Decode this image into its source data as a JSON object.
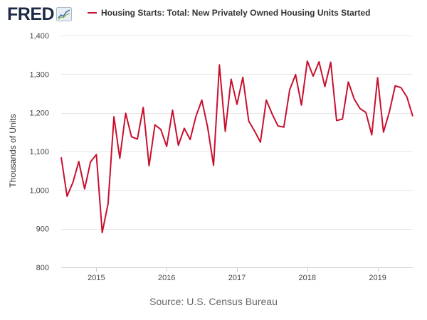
{
  "logo": {
    "text": "FRED"
  },
  "legend": {
    "label": "Housing Starts: Total: New Privately Owned Housing Units Started",
    "color": "#c8102e"
  },
  "source": "Source: U.S. Census Bureau",
  "chart_data": {
    "type": "line",
    "title": "Housing Starts: Total: New Privately Owned Housing Units Started",
    "ylabel": "Thousands of Units",
    "xlabel": "",
    "ylim": [
      800,
      1400
    ],
    "yticks": [
      "800",
      "900",
      "1,000",
      "1,100",
      "1,200",
      "1,300",
      "1,400"
    ],
    "xticks": [
      "2015",
      "2016",
      "2017",
      "2018",
      "2019"
    ],
    "grid": "horizontal",
    "line_color": "#c8102e",
    "series": [
      {
        "name": "Housing Starts: Total: New Privately Owned Housing Units Started",
        "x": [
          "2014-07",
          "2014-08",
          "2014-09",
          "2014-10",
          "2014-11",
          "2014-12",
          "2015-01",
          "2015-02",
          "2015-03",
          "2015-04",
          "2015-05",
          "2015-06",
          "2015-07",
          "2015-08",
          "2015-09",
          "2015-10",
          "2015-11",
          "2015-12",
          "2016-01",
          "2016-02",
          "2016-03",
          "2016-04",
          "2016-05",
          "2016-06",
          "2016-07",
          "2016-08",
          "2016-09",
          "2016-10",
          "2016-11",
          "2016-12",
          "2017-01",
          "2017-02",
          "2017-03",
          "2017-04",
          "2017-05",
          "2017-06",
          "2017-07",
          "2017-08",
          "2017-09",
          "2017-10",
          "2017-11",
          "2017-12",
          "2018-01",
          "2018-02",
          "2018-03",
          "2018-04",
          "2018-05",
          "2018-06",
          "2018-07",
          "2018-08",
          "2018-09",
          "2018-10",
          "2018-11",
          "2018-12",
          "2019-01",
          "2019-02",
          "2019-03",
          "2019-04",
          "2019-05",
          "2019-06",
          "2019-07"
        ],
        "values": [
          1085,
          984,
          1020,
          1074,
          1003,
          1073,
          1092,
          890,
          965,
          1190,
          1082,
          1199,
          1138,
          1132,
          1214,
          1063,
          1169,
          1157,
          1113,
          1207,
          1116,
          1160,
          1131,
          1191,
          1233,
          1162,
          1064,
          1324,
          1152,
          1287,
          1222,
          1292,
          1179,
          1153,
          1124,
          1233,
          1197,
          1166,
          1163,
          1260,
          1299,
          1220,
          1334,
          1295,
          1332,
          1268,
          1331,
          1180,
          1184,
          1280,
          1236,
          1211,
          1201,
          1143,
          1291,
          1150,
          1202,
          1270,
          1265,
          1241,
          1191
        ]
      }
    ]
  }
}
